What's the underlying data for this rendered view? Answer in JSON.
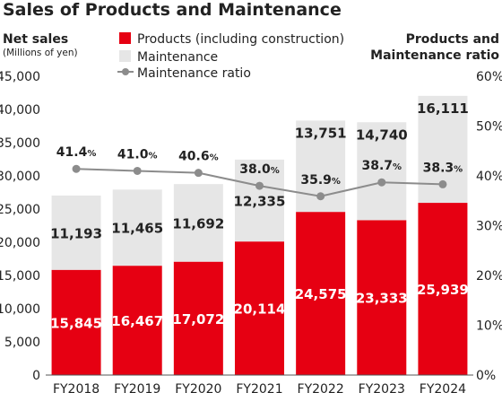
{
  "chart_data": {
    "type": "bar",
    "title": "Sales of Products and Maintenance",
    "ylabel": "Net sales",
    "ylabel_unit": "(Millions of yen)",
    "y2label_line1": "Products and",
    "y2label_line2": "Maintenance ratio",
    "ylim": [
      0,
      45000
    ],
    "y2lim": [
      0,
      60
    ],
    "stacked": true,
    "grid": false,
    "legend_position": "top",
    "categories": [
      "FY2018",
      "FY2019",
      "FY2020",
      "FY2021",
      "FY2022",
      "FY2023",
      "FY2024"
    ],
    "yticks": [
      "0",
      "5,000",
      "10,000",
      "15,000",
      "20,000",
      "25,000",
      "30,000",
      "35,000",
      "40,000",
      "45,000"
    ],
    "y2ticks": [
      "0%",
      "10%",
      "20%",
      "30%",
      "40%",
      "50%",
      "60%"
    ],
    "series": [
      {
        "name": "Products (including construction)",
        "type": "bar",
        "color": "#e60012",
        "values": [
          15845,
          16467,
          17072,
          20114,
          24575,
          23333,
          25939
        ],
        "labels": [
          "15,845",
          "16,467",
          "17,072",
          "20,114",
          "24,575",
          "23,333",
          "25,939"
        ]
      },
      {
        "name": "Maintenance",
        "type": "bar",
        "color": "#e6e6e6",
        "values": [
          11193,
          11465,
          11692,
          12335,
          13751,
          14740,
          16111
        ],
        "labels": [
          "11,193",
          "11,465",
          "11,692",
          "12,335",
          "13,751",
          "14,740",
          "16,111"
        ]
      },
      {
        "name": "Maintenance ratio",
        "type": "line",
        "axis": "right",
        "color": "#8c8c8c",
        "values": [
          41.4,
          41.0,
          40.6,
          38.0,
          35.9,
          38.7,
          38.3
        ],
        "labels": [
          "41.4",
          "41.0",
          "40.6",
          "38.0",
          "35.9",
          "38.7",
          "38.3"
        ],
        "label_suffix": "%"
      }
    ]
  }
}
